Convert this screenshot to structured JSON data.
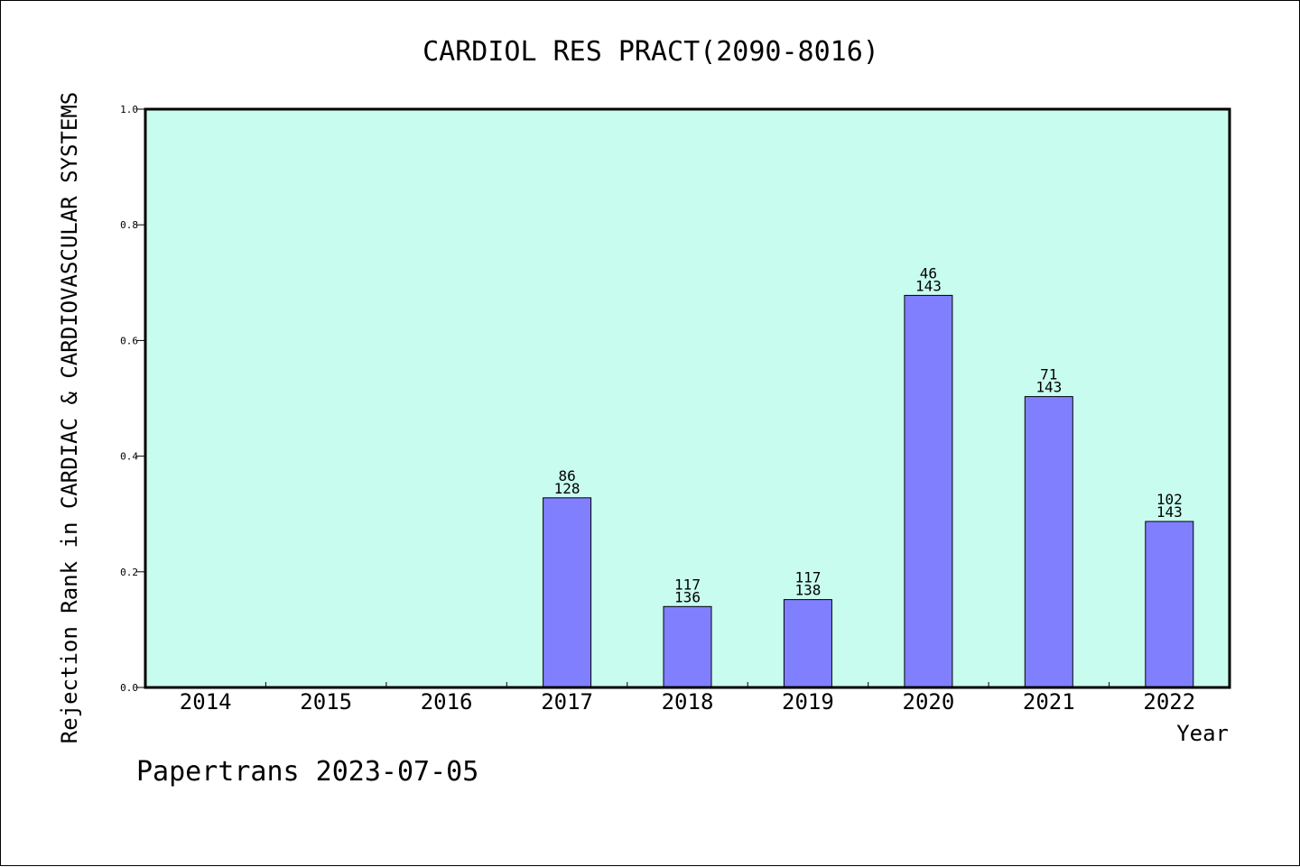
{
  "chart_data": {
    "type": "bar",
    "title": "CARDIOL RES PRACT(2090-8016)",
    "xlabel": "Year",
    "ylabel": "Rejection Rank in CARDIAC & CARDIOVASCULAR SYSTEMS",
    "ylim": [
      0,
      1.0
    ],
    "yticks": [
      "0.0",
      "0.2",
      "0.4",
      "0.6",
      "0.8",
      "1.0"
    ],
    "categories": [
      "2014",
      "2015",
      "2016",
      "2017",
      "2018",
      "2019",
      "2020",
      "2021",
      "2022"
    ],
    "values": [
      null,
      null,
      null,
      0.328,
      0.14,
      0.152,
      0.678,
      0.503,
      0.287
    ],
    "labels_top": [
      "",
      "",
      "",
      "86",
      "117",
      "117",
      "46",
      "71",
      "102"
    ],
    "labels_bottom": [
      "",
      "",
      "",
      "128",
      "136",
      "138",
      "143",
      "143",
      "143"
    ],
    "grid": false,
    "colors": {
      "plot_background": "#c8fcee",
      "bar_fill": "#8080ff",
      "bar_stroke": "#000000"
    }
  },
  "footer": "Papertrans 2023-07-05"
}
